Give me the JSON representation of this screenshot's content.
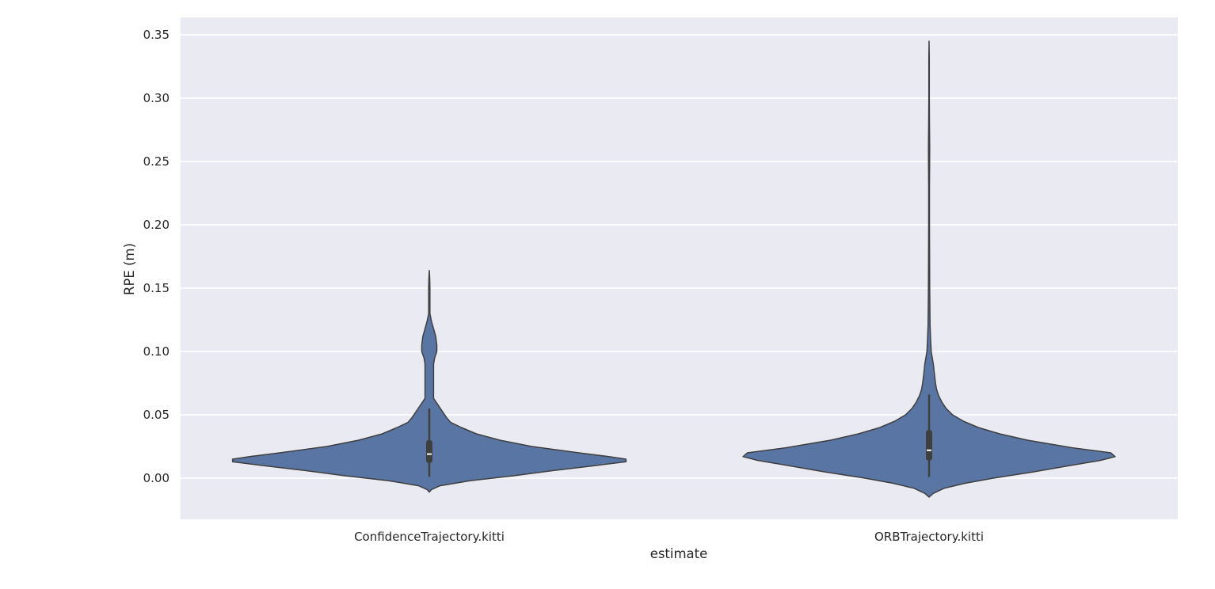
{
  "chart_data": {
    "type": "violin",
    "title": "",
    "xlabel": "estimate",
    "ylabel": "RPE (m)",
    "ylim": [
      -0.033,
      0.363
    ],
    "yticks": [
      "0.00",
      "0.05",
      "0.10",
      "0.15",
      "0.20",
      "0.25",
      "0.30",
      "0.35"
    ],
    "grid": true,
    "colors": {
      "background": "#EAEAF2",
      "violin_fill": "#5975A4",
      "outline": "#3F3F3F",
      "box": "#3F3F3F",
      "median": "#FFFFFF",
      "grid": "#FFFFFF"
    },
    "categories": [
      "ConfidenceTrajectory.kitti",
      "ORBTrajectory.kitti"
    ],
    "violins": [
      {
        "category": "ConfidenceTrajectory.kitti",
        "min": 0.001,
        "q1": 0.012,
        "median": 0.019,
        "q3": 0.03,
        "max": 0.055,
        "density": [
          [
            -0.011,
            0.0
          ],
          [
            -0.009,
            0.01
          ],
          [
            -0.006,
            0.05
          ],
          [
            -0.002,
            0.19
          ],
          [
            0.002,
            0.4
          ],
          [
            0.006,
            0.58
          ],
          [
            0.01,
            0.78
          ],
          [
            0.013,
            0.92
          ],
          [
            0.015,
            0.92
          ],
          [
            0.017,
            0.84
          ],
          [
            0.02,
            0.7
          ],
          [
            0.025,
            0.48
          ],
          [
            0.03,
            0.33
          ],
          [
            0.035,
            0.22
          ],
          [
            0.04,
            0.15
          ],
          [
            0.044,
            0.1
          ],
          [
            0.048,
            0.08
          ],
          [
            0.053,
            0.06
          ],
          [
            0.058,
            0.04
          ],
          [
            0.063,
            0.02
          ],
          [
            0.07,
            0.02
          ],
          [
            0.08,
            0.02
          ],
          [
            0.09,
            0.02
          ],
          [
            0.095,
            0.025
          ],
          [
            0.1,
            0.035
          ],
          [
            0.105,
            0.035
          ],
          [
            0.112,
            0.03
          ],
          [
            0.118,
            0.02
          ],
          [
            0.124,
            0.01
          ],
          [
            0.13,
            0.003
          ],
          [
            0.14,
            0.003
          ],
          [
            0.15,
            0.003
          ],
          [
            0.158,
            0.002
          ],
          [
            0.164,
            0.0
          ]
        ]
      },
      {
        "category": "ORBTrajectory.kitti",
        "min": 0.001,
        "q1": 0.014,
        "median": 0.022,
        "q3": 0.038,
        "max": 0.066,
        "density": [
          [
            -0.015,
            0.0
          ],
          [
            -0.012,
            0.02
          ],
          [
            -0.008,
            0.07
          ],
          [
            -0.004,
            0.17
          ],
          [
            0.0,
            0.3
          ],
          [
            0.005,
            0.49
          ],
          [
            0.01,
            0.66
          ],
          [
            0.014,
            0.8
          ],
          [
            0.017,
            0.87
          ],
          [
            0.02,
            0.85
          ],
          [
            0.024,
            0.67
          ],
          [
            0.03,
            0.46
          ],
          [
            0.035,
            0.33
          ],
          [
            0.04,
            0.23
          ],
          [
            0.045,
            0.16
          ],
          [
            0.05,
            0.11
          ],
          [
            0.055,
            0.08
          ],
          [
            0.06,
            0.06
          ],
          [
            0.065,
            0.045
          ],
          [
            0.07,
            0.035
          ],
          [
            0.075,
            0.03
          ],
          [
            0.082,
            0.025
          ],
          [
            0.09,
            0.02
          ],
          [
            0.1,
            0.01
          ],
          [
            0.11,
            0.007
          ],
          [
            0.12,
            0.005
          ],
          [
            0.13,
            0.004
          ],
          [
            0.15,
            0.003
          ],
          [
            0.2,
            0.002
          ],
          [
            0.23,
            0.002
          ],
          [
            0.26,
            0.003
          ],
          [
            0.28,
            0.002
          ],
          [
            0.3,
            0.001
          ],
          [
            0.33,
            0.001
          ],
          [
            0.345,
            0.0
          ]
        ]
      }
    ]
  }
}
